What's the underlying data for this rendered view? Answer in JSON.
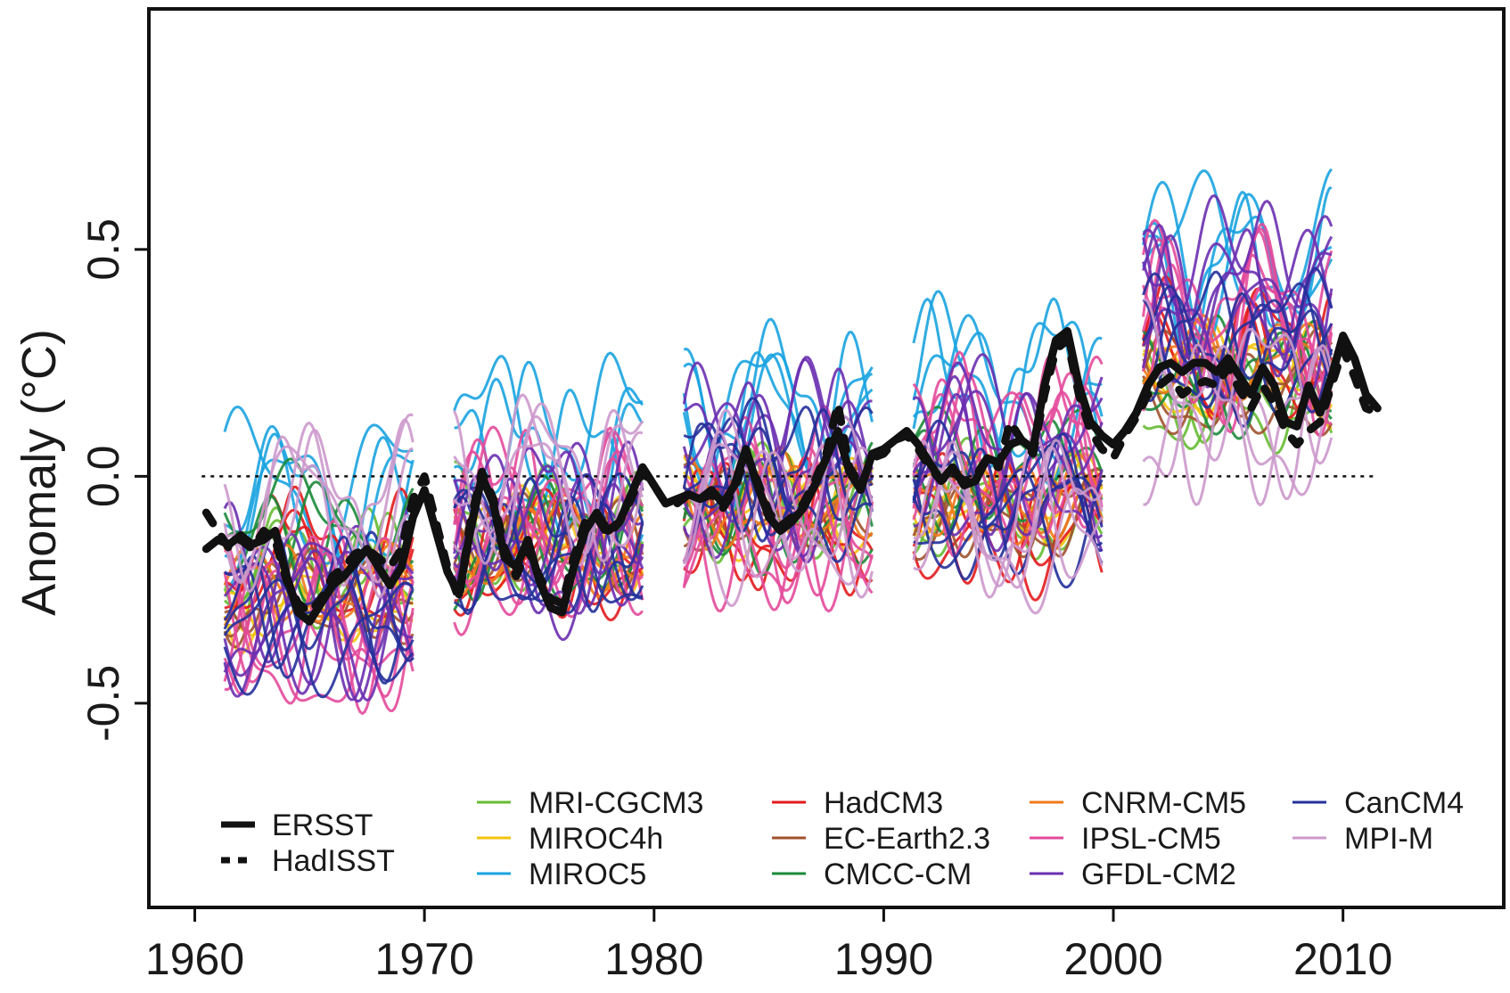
{
  "chart_data": {
    "type": "line",
    "title": "",
    "xlabel": "",
    "ylabel": "Anomaly (°C)",
    "xlim": [
      1958,
      2017
    ],
    "ylim": [
      -0.95,
      1.03
    ],
    "x_ticks": [
      1960,
      1970,
      1980,
      1990,
      2000,
      2010
    ],
    "x_tick_labels": [
      "1960",
      "1970",
      "1980",
      "1990",
      "2000",
      "2010"
    ],
    "y_ticks": [
      -0.5,
      0.0,
      0.5
    ],
    "y_tick_labels": [
      "-0.5",
      "0.0",
      "0.5"
    ],
    "reference_line": {
      "y": 0.0,
      "style": "dotted",
      "x_range": [
        1960.3,
        2011.5
      ]
    },
    "legend_position": "bottom",
    "observations": [
      {
        "name": "ERSST",
        "style": "solid",
        "color": "#111111",
        "x": [
          1960.5,
          1961.0,
          1961.5,
          1962.0,
          1962.5,
          1963.0,
          1963.5,
          1964.0,
          1964.5,
          1965.0,
          1965.5,
          1966.0,
          1966.5,
          1967.0,
          1967.5,
          1968.0,
          1968.5,
          1969.0,
          1969.5,
          1970.0,
          1970.5,
          1971.0,
          1971.5,
          1972.0,
          1972.5,
          1973.0,
          1973.5,
          1974.0,
          1974.5,
          1975.0,
          1975.5,
          1976.0,
          1976.5,
          1977.0,
          1977.5,
          1978.0,
          1978.5,
          1979.0,
          1979.5,
          1980.0,
          1980.5,
          1981.0,
          1981.5,
          1982.0,
          1982.5,
          1983.0,
          1983.5,
          1984.0,
          1984.5,
          1985.0,
          1985.5,
          1986.0,
          1986.5,
          1987.0,
          1987.5,
          1988.0,
          1988.5,
          1989.0,
          1989.5,
          1990.0,
          1990.5,
          1991.0,
          1991.5,
          1992.0,
          1992.5,
          1993.0,
          1993.5,
          1994.0,
          1994.5,
          1995.0,
          1995.5,
          1996.0,
          1996.5,
          1997.0,
          1997.5,
          1998.0,
          1998.5,
          1999.0,
          1999.5,
          2000.0,
          2000.5,
          2001.0,
          2001.5,
          2002.0,
          2002.5,
          2003.0,
          2003.5,
          2004.0,
          2004.5,
          2005.0,
          2005.5,
          2006.0,
          2006.5,
          2007.0,
          2007.5,
          2008.0,
          2008.5,
          2009.0,
          2009.5,
          2010.0,
          2010.5,
          2011.0,
          2011.5
        ],
        "y": [
          -0.16,
          -0.14,
          -0.15,
          -0.13,
          -0.15,
          -0.14,
          -0.12,
          -0.22,
          -0.3,
          -0.32,
          -0.28,
          -0.24,
          -0.22,
          -0.19,
          -0.16,
          -0.2,
          -0.24,
          -0.2,
          -0.09,
          -0.03,
          -0.12,
          -0.21,
          -0.26,
          -0.12,
          0.0,
          -0.06,
          -0.18,
          -0.2,
          -0.14,
          -0.23,
          -0.29,
          -0.3,
          -0.2,
          -0.12,
          -0.08,
          -0.12,
          -0.1,
          -0.04,
          0.02,
          -0.02,
          -0.06,
          -0.05,
          -0.04,
          -0.05,
          -0.03,
          -0.06,
          -0.02,
          0.06,
          -0.02,
          -0.09,
          -0.12,
          -0.1,
          -0.07,
          -0.02,
          0.04,
          0.1,
          0.01,
          -0.03,
          0.05,
          0.06,
          0.08,
          0.1,
          0.07,
          0.03,
          -0.01,
          0.02,
          -0.02,
          -0.01,
          0.04,
          0.03,
          0.07,
          0.08,
          0.06,
          0.2,
          0.3,
          0.32,
          0.2,
          0.12,
          0.09,
          0.07,
          0.1,
          0.14,
          0.2,
          0.24,
          0.25,
          0.23,
          0.25,
          0.25,
          0.23,
          0.26,
          0.22,
          0.18,
          0.24,
          0.2,
          0.12,
          0.11,
          0.2,
          0.14,
          0.22,
          0.31,
          0.26,
          0.18,
          0.15
        ]
      },
      {
        "name": "HadISST",
        "style": "dashed",
        "color": "#111111",
        "x": [
          1960.5,
          1961.0,
          1961.5,
          1962.0,
          1962.5,
          1963.0,
          1963.5,
          1964.0,
          1964.5,
          1965.0,
          1965.5,
          1966.0,
          1966.5,
          1967.0,
          1967.5,
          1968.0,
          1968.5,
          1969.0,
          1969.5,
          1970.0,
          1970.5,
          1971.0,
          1971.5,
          1972.0,
          1972.5,
          1973.0,
          1973.5,
          1974.0,
          1974.5,
          1975.0,
          1975.5,
          1976.0,
          1976.5,
          1977.0,
          1977.5,
          1978.0,
          1978.5,
          1979.0,
          1979.5,
          1980.0,
          1980.5,
          1981.0,
          1981.5,
          1982.0,
          1982.5,
          1983.0,
          1983.5,
          1984.0,
          1984.5,
          1985.0,
          1985.5,
          1986.0,
          1986.5,
          1987.0,
          1987.5,
          1988.0,
          1988.5,
          1989.0,
          1989.5,
          1990.0,
          1990.5,
          1991.0,
          1991.5,
          1992.0,
          1992.5,
          1993.0,
          1993.5,
          1994.0,
          1994.5,
          1995.0,
          1995.5,
          1996.0,
          1996.5,
          1997.0,
          1997.5,
          1998.0,
          1998.5,
          1999.0,
          1999.5,
          2000.0,
          2000.5,
          2001.0,
          2001.5,
          2002.0,
          2002.5,
          2003.0,
          2003.5,
          2004.0,
          2004.5,
          2005.0,
          2005.5,
          2006.0,
          2006.5,
          2007.0,
          2007.5,
          2008.0,
          2008.5,
          2009.0,
          2009.5,
          2010.0,
          2010.5,
          2011.0,
          2011.5
        ],
        "y": [
          -0.08,
          -0.12,
          -0.16,
          -0.14,
          -0.16,
          -0.12,
          -0.14,
          -0.23,
          -0.28,
          -0.3,
          -0.27,
          -0.22,
          -0.2,
          -0.17,
          -0.16,
          -0.18,
          -0.2,
          -0.16,
          -0.05,
          0.0,
          -0.1,
          -0.2,
          -0.27,
          -0.1,
          0.01,
          -0.05,
          -0.16,
          -0.22,
          -0.16,
          -0.22,
          -0.27,
          -0.28,
          -0.18,
          -0.1,
          -0.09,
          -0.13,
          -0.1,
          -0.05,
          0.01,
          -0.02,
          -0.06,
          -0.06,
          -0.04,
          -0.05,
          -0.04,
          -0.07,
          -0.03,
          0.05,
          -0.01,
          -0.08,
          -0.11,
          -0.09,
          -0.06,
          -0.01,
          0.05,
          0.16,
          0.02,
          -0.02,
          0.04,
          0.05,
          0.08,
          0.09,
          0.06,
          0.02,
          -0.01,
          0.01,
          -0.01,
          0.0,
          0.04,
          0.02,
          0.12,
          0.08,
          0.05,
          0.18,
          0.28,
          0.3,
          0.18,
          0.1,
          0.06,
          0.04,
          0.09,
          0.13,
          0.18,
          0.2,
          0.22,
          0.18,
          0.2,
          0.21,
          0.2,
          0.24,
          0.19,
          0.15,
          0.2,
          0.16,
          0.1,
          0.07,
          0.1,
          0.12,
          0.2,
          0.28,
          0.22,
          0.15,
          0.14
        ]
      }
    ],
    "hindcast_windows": [
      {
        "start": 1961.3,
        "end": 1969.5
      },
      {
        "start": 1971.3,
        "end": 1979.5
      },
      {
        "start": 1981.3,
        "end": 1989.5
      },
      {
        "start": 1991.3,
        "end": 1999.5
      },
      {
        "start": 2001.3,
        "end": 2009.5
      }
    ],
    "series": [
      {
        "name": "MRI-CGCM3",
        "color": "#66bb33",
        "ensemble_members": 3,
        "window_means": [
          -0.22,
          -0.12,
          -0.05,
          -0.03,
          0.2
        ],
        "amplitude": 0.1
      },
      {
        "name": "MIROC4h",
        "color": "#f2c40f",
        "ensemble_members": 3,
        "window_means": [
          -0.28,
          -0.14,
          -0.06,
          -0.05,
          0.22
        ],
        "amplitude": 0.08
      },
      {
        "name": "MIROC5",
        "color": "#1aa3e0",
        "ensemble_members": 4,
        "window_means": [
          -0.05,
          0.05,
          0.15,
          0.18,
          0.45
        ],
        "amplitude": 0.15
      },
      {
        "name": "HadCM3",
        "color": "#e31a1c",
        "ensemble_members": 3,
        "window_means": [
          -0.2,
          -0.15,
          -0.1,
          -0.1,
          0.25
        ],
        "amplitude": 0.12
      },
      {
        "name": "EC-Earth2.3",
        "color": "#a0522d",
        "ensemble_members": 3,
        "window_means": [
          -0.25,
          -0.14,
          -0.05,
          -0.06,
          0.2
        ],
        "amplitude": 0.08
      },
      {
        "name": "CMCC-CM",
        "color": "#1b8a3a",
        "ensemble_members": 3,
        "window_means": [
          -0.12,
          -0.15,
          -0.08,
          0.02,
          0.2
        ],
        "amplitude": 0.1
      },
      {
        "name": "CNRM-CM5",
        "color": "#f07a1a",
        "ensemble_members": 3,
        "window_means": [
          -0.24,
          -0.14,
          -0.06,
          -0.05,
          0.23
        ],
        "amplitude": 0.08
      },
      {
        "name": "IPSL-CM5",
        "color": "#e34a9b",
        "ensemble_members": 6,
        "window_means": [
          -0.35,
          -0.14,
          -0.08,
          0.05,
          0.35
        ],
        "amplitude": 0.16
      },
      {
        "name": "GFDL-CM2",
        "color": "#6a2fb0",
        "ensemble_members": 6,
        "window_means": [
          -0.28,
          -0.12,
          0.05,
          0.05,
          0.38
        ],
        "amplitude": 0.15
      },
      {
        "name": "CanCM4",
        "color": "#24309b",
        "ensemble_members": 5,
        "window_means": [
          -0.3,
          -0.18,
          -0.02,
          -0.05,
          0.3
        ],
        "amplitude": 0.12
      },
      {
        "name": "MPI-M",
        "color": "#cc99cc",
        "ensemble_members": 4,
        "window_means": [
          -0.1,
          0.02,
          -0.05,
          -0.08,
          0.15
        ],
        "amplitude": 0.15
      }
    ],
    "legend": {
      "observations": [
        "ERSST",
        "HadISST"
      ],
      "columns": [
        [
          "MRI-CGCM3",
          "MIROC4h",
          "MIROC5"
        ],
        [
          "HadCM3",
          "EC-Earth2.3",
          "CMCC-CM"
        ],
        [
          "CNRM-CM5",
          "IPSL-CM5",
          "GFDL-CM2"
        ],
        [
          "CanCM4",
          "MPI-M"
        ]
      ]
    }
  }
}
